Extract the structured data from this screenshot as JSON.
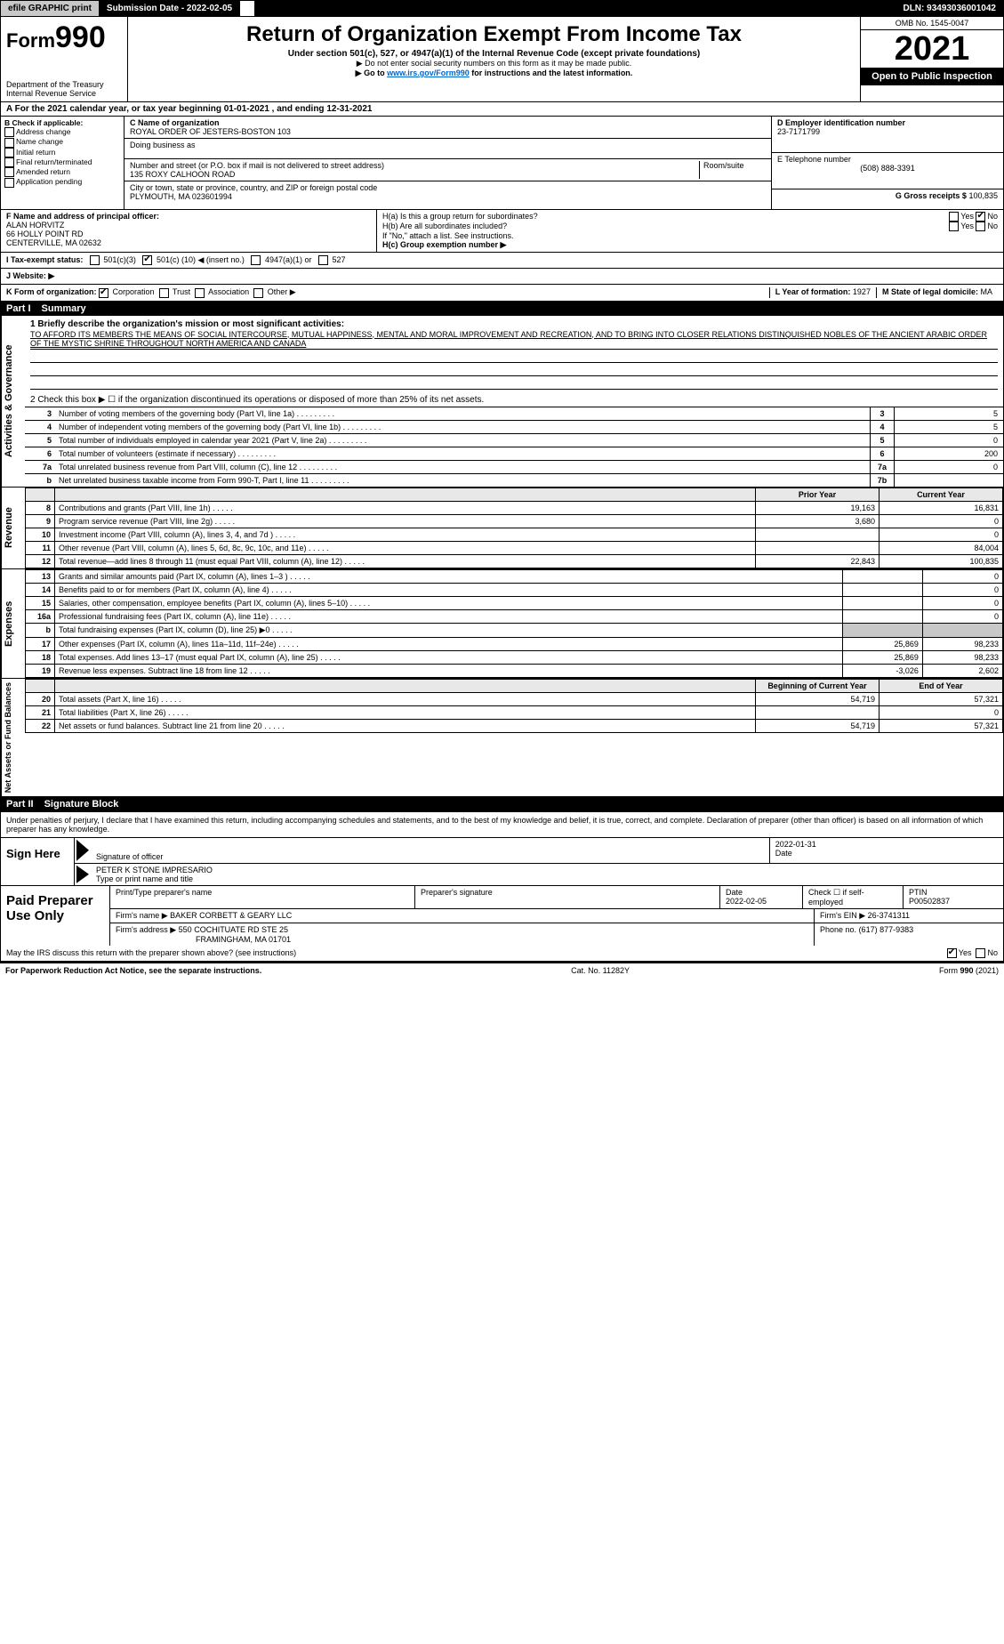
{
  "topbar": {
    "efile_label": "efile GRAPHIC print",
    "submission_label": "Submission Date - 2022-02-05",
    "dln_label": "DLN: 93493036001042"
  },
  "header": {
    "form_label": "Form",
    "form_number": "990",
    "title": "Return of Organization Exempt From Income Tax",
    "subtitle": "Under section 501(c), 527, or 4947(a)(1) of the Internal Revenue Code (except private foundations)",
    "ssn_note": "▶ Do not enter social security numbers on this form as it may be made public.",
    "goto_prefix": "▶ Go to ",
    "goto_link": "www.irs.gov/Form990",
    "goto_suffix": " for instructions and the latest information.",
    "dept": "Department of the Treasury",
    "irs": "Internal Revenue Service",
    "omb": "OMB No. 1545-0047",
    "year": "2021",
    "open_public": "Open to Public Inspection"
  },
  "line_a": "A For the 2021 calendar year, or tax year beginning 01-01-2021    , and ending 12-31-2021",
  "col_b": {
    "header": "B Check if applicable:",
    "items": [
      "Address change",
      "Name change",
      "Initial return",
      "Final return/terminated",
      "Amended return",
      "Application pending"
    ]
  },
  "col_c": {
    "name_label": "C Name of organization",
    "name": "ROYAL ORDER OF JESTERS-BOSTON 103",
    "dba_label": "Doing business as",
    "dba": "",
    "street_label": "Number and street (or P.O. box if mail is not delivered to street address)",
    "room_label": "Room/suite",
    "street": "135 ROXY CALHOON ROAD",
    "city_label": "City or town, state or province, country, and ZIP or foreign postal code",
    "city": "PLYMOUTH, MA  023601994"
  },
  "col_d": {
    "ein_label": "D Employer identification number",
    "ein": "23-7171799",
    "phone_label": "E Telephone number",
    "phone": "(508) 888-3391",
    "gross_label": "G Gross receipts $",
    "gross": "100,835"
  },
  "section_f": {
    "label": "F Name and address of principal officer:",
    "name": "ALAN HORVITZ",
    "street": "66 HOLLY POINT RD",
    "city": "CENTERVILLE, MA  02632"
  },
  "section_h": {
    "ha_label": "H(a)  Is this a group return for subordinates?",
    "hb_label": "H(b)  Are all subordinates included?",
    "hb_note": "If \"No,\" attach a list. See instructions.",
    "hc_label": "H(c)  Group exemption number ▶",
    "yes": "Yes",
    "no": "No"
  },
  "line_i": {
    "label": "I   Tax-exempt status:",
    "opt1": "501(c)(3)",
    "opt2_pre": "501(c) (",
    "opt2_val": "10",
    "opt2_post": ") ◀ (insert no.)",
    "opt3": "4947(a)(1) or",
    "opt4": "527"
  },
  "line_j": {
    "label": "J   Website: ▶"
  },
  "line_k": {
    "label": "K Form of organization:",
    "opts": [
      "Corporation",
      "Trust",
      "Association",
      "Other ▶"
    ]
  },
  "line_lm": {
    "l_label": "L Year of formation:",
    "l_val": "1927",
    "m_label": "M State of legal domicile:",
    "m_val": "MA"
  },
  "part1": {
    "label": "Part I",
    "title": "Summary",
    "tab1": "Activities & Governance",
    "tab2": "Revenue",
    "tab3": "Expenses",
    "tab4": "Net Assets or Fund Balances",
    "line1_label": "1  Briefly describe the organization's mission or most significant activities:",
    "mission": "TO AFFORD ITS MEMBERS THE MEANS OF SOCIAL INTERCOURSE, MUTUAL HAPPINESS, MENTAL AND MORAL IMPROVEMENT AND RECREATION, AND TO BRING INTO CLOSER RELATIONS DISTINQUISHED NOBLES OF THE ANCIENT ARABIC ORDER OF THE MYSTIC SHRINE THROUGHOUT NORTH AMERICA AND CANADA",
    "line2": "2   Check this box ▶ ☐ if the organization discontinued its operations or disposed of more than 25% of its net assets.",
    "gov_lines": [
      {
        "n": "3",
        "text": "Number of voting members of the governing body (Part VI, line 1a)",
        "box": "3",
        "val": "5"
      },
      {
        "n": "4",
        "text": "Number of independent voting members of the governing body (Part VI, line 1b)",
        "box": "4",
        "val": "5"
      },
      {
        "n": "5",
        "text": "Total number of individuals employed in calendar year 2021 (Part V, line 2a)",
        "box": "5",
        "val": "0"
      },
      {
        "n": "6",
        "text": "Total number of volunteers (estimate if necessary)",
        "box": "6",
        "val": "200"
      },
      {
        "n": "7a",
        "text": "Total unrelated business revenue from Part VIII, column (C), line 12",
        "box": "7a",
        "val": "0"
      },
      {
        "n": "b",
        "text": "Net unrelated business taxable income from Form 990-T, Part I, line 11",
        "box": "7b",
        "val": ""
      }
    ],
    "col_prior": "Prior Year",
    "col_current": "Current Year",
    "rev_lines": [
      {
        "n": "8",
        "text": "Contributions and grants (Part VIII, line 1h)",
        "prior": "19,163",
        "curr": "16,831"
      },
      {
        "n": "9",
        "text": "Program service revenue (Part VIII, line 2g)",
        "prior": "3,680",
        "curr": "0"
      },
      {
        "n": "10",
        "text": "Investment income (Part VIII, column (A), lines 3, 4, and 7d )",
        "prior": "",
        "curr": "0"
      },
      {
        "n": "11",
        "text": "Other revenue (Part VIII, column (A), lines 5, 6d, 8c, 9c, 10c, and 11e)",
        "prior": "",
        "curr": "84,004"
      },
      {
        "n": "12",
        "text": "Total revenue—add lines 8 through 11 (must equal Part VIII, column (A), line 12)",
        "prior": "22,843",
        "curr": "100,835"
      }
    ],
    "exp_lines": [
      {
        "n": "13",
        "text": "Grants and similar amounts paid (Part IX, column (A), lines 1–3 )",
        "prior": "",
        "curr": "0"
      },
      {
        "n": "14",
        "text": "Benefits paid to or for members (Part IX, column (A), line 4)",
        "prior": "",
        "curr": "0"
      },
      {
        "n": "15",
        "text": "Salaries, other compensation, employee benefits (Part IX, column (A), lines 5–10)",
        "prior": "",
        "curr": "0"
      },
      {
        "n": "16a",
        "text": "Professional fundraising fees (Part IX, column (A), line 11e)",
        "prior": "",
        "curr": "0"
      },
      {
        "n": "b",
        "text": "Total fundraising expenses (Part IX, column (D), line 25) ▶0",
        "prior": "shade",
        "curr": "shade"
      },
      {
        "n": "17",
        "text": "Other expenses (Part IX, column (A), lines 11a–11d, 11f–24e)",
        "prior": "25,869",
        "curr": "98,233"
      },
      {
        "n": "18",
        "text": "Total expenses. Add lines 13–17 (must equal Part IX, column (A), line 25)",
        "prior": "25,869",
        "curr": "98,233"
      },
      {
        "n": "19",
        "text": "Revenue less expenses. Subtract line 18 from line 12",
        "prior": "-3,026",
        "curr": "2,602"
      }
    ],
    "col_begin": "Beginning of Current Year",
    "col_end": "End of Year",
    "net_lines": [
      {
        "n": "20",
        "text": "Total assets (Part X, line 16)",
        "prior": "54,719",
        "curr": "57,321"
      },
      {
        "n": "21",
        "text": "Total liabilities (Part X, line 26)",
        "prior": "",
        "curr": "0"
      },
      {
        "n": "22",
        "text": "Net assets or fund balances. Subtract line 21 from line 20",
        "prior": "54,719",
        "curr": "57,321"
      }
    ]
  },
  "part2": {
    "label": "Part II",
    "title": "Signature Block",
    "declaration": "Under penalties of perjury, I declare that I have examined this return, including accompanying schedules and statements, and to the best of my knowledge and belief, it is true, correct, and complete. Declaration of preparer (other than officer) is based on all information of which preparer has any knowledge.",
    "sign_here": "Sign Here",
    "sig_officer": "Signature of officer",
    "date_label": "Date",
    "sig_date": "2022-01-31",
    "officer_name": "PETER K STONE IMPRESARIO",
    "type_name": "Type or print name and title",
    "paid_label": "Paid Preparer Use Only",
    "prep_name_label": "Print/Type preparer's name",
    "prep_sig_label": "Preparer's signature",
    "prep_date": "2022-02-05",
    "check_self": "Check ☐ if self-employed",
    "ptin_label": "PTIN",
    "ptin": "P00502837",
    "firm_name_label": "Firm's name    ▶",
    "firm_name": "BAKER CORBETT & GEARY LLC",
    "firm_ein_label": "Firm's EIN ▶",
    "firm_ein": "26-3741311",
    "firm_addr_label": "Firm's address ▶",
    "firm_addr1": "550 COCHITUATE RD STE 25",
    "firm_addr2": "FRAMINGHAM, MA  01701",
    "firm_phone_label": "Phone no.",
    "firm_phone": "(617) 877-9383",
    "may_irs": "May the IRS discuss this return with the preparer shown above? (see instructions)",
    "footer_left": "For Paperwork Reduction Act Notice, see the separate instructions.",
    "footer_mid": "Cat. No. 11282Y",
    "footer_right": "Form 990 (2021)"
  }
}
